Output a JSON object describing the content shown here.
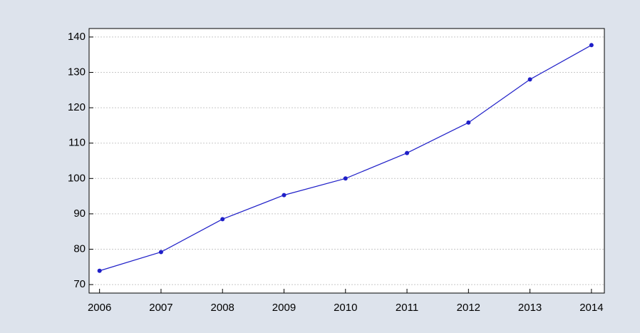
{
  "chart_data": {
    "type": "line",
    "x": [
      2006,
      2007,
      2008,
      2009,
      2010,
      2011,
      2012,
      2013,
      2014
    ],
    "series": [
      {
        "color": "#1f1fc8",
        "values": [
          73.9,
          79.2,
          88.5,
          95.3,
          100.0,
          107.2,
          115.8,
          128.0,
          137.7
        ]
      }
    ],
    "xlim": [
      2005.83,
      2014.21
    ],
    "xticks": [
      2006,
      2007,
      2008,
      2009,
      2010,
      2011,
      2012,
      2013,
      2014
    ],
    "ylim": [
      67.6,
      142.4
    ],
    "yticks": [
      70,
      80,
      90,
      100,
      110,
      120,
      130,
      140
    ],
    "grid": true
  }
}
